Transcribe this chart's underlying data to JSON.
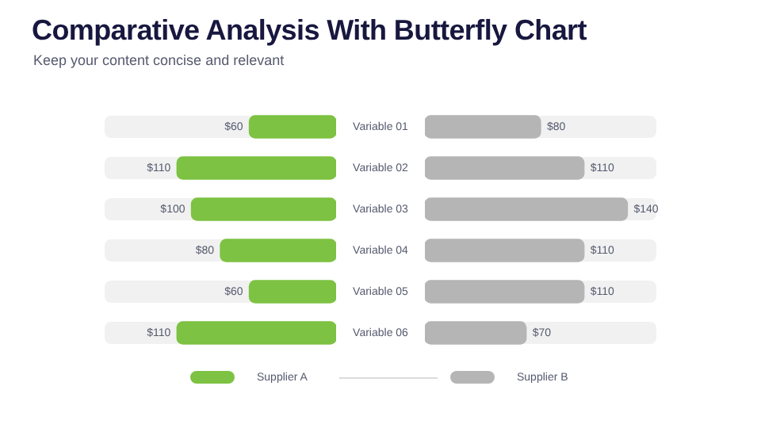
{
  "chart_data": [
    {
      "type": "bar",
      "title": "Comparative Analysis With Butterfly Chart",
      "subtitle": "Keep your content concise and relevant",
      "orientation": "horizontal",
      "categories": [
        "Variable 01",
        "Variable 02",
        "Variable 03",
        "Variable 04",
        "Variable 05",
        "Variable 06"
      ],
      "xlim": [
        160,
        0
      ],
      "tick_labels": "y",
      "legend": "bottom",
      "series": [
        {
          "name": "Supplier A",
          "color": "#7dc242",
          "values": [
            60,
            110,
            100,
            80,
            60,
            110
          ],
          "value_labels": [
            "$60",
            "$110",
            "$100",
            "$80",
            "$60",
            "$110"
          ]
        }
      ]
    },
    {
      "type": "bar",
      "orientation": "horizontal",
      "categories": [
        null,
        null,
        null,
        null,
        null,
        null
      ],
      "xlim": [
        0,
        160
      ],
      "tick_labels": false,
      "legend": "bottom",
      "series": [
        {
          "name": "Supplier B",
          "color": "#b5b5b5",
          "values": [
            80,
            110,
            140,
            110,
            110,
            70
          ],
          "value_labels": [
            "$80",
            "$110",
            "$140",
            "$110",
            "$110",
            "$70"
          ]
        }
      ]
    }
  ]
}
